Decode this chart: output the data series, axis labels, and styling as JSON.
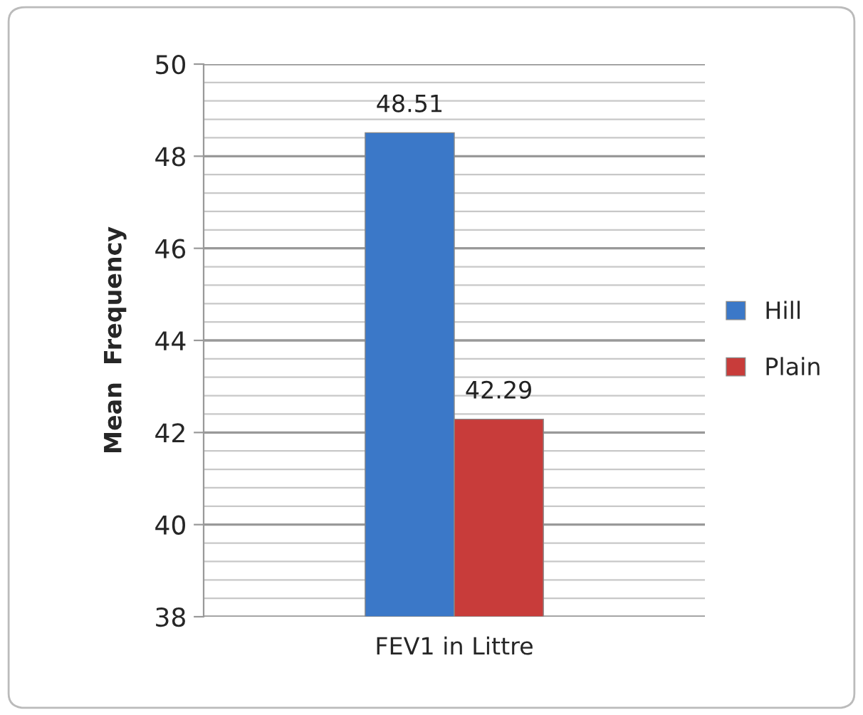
{
  "chart_data": {
    "type": "bar",
    "ylabel": "Mean  Frequency",
    "categories": [
      "FEV1 in Littre"
    ],
    "series": [
      {
        "name": "Hill",
        "color": "#3b78c8",
        "values": [
          48.51
        ]
      },
      {
        "name": "Plain",
        "color": "#c83c3a",
        "values": [
          42.29
        ]
      }
    ],
    "ylim": [
      38,
      50
    ],
    "yticks": [
      38,
      40,
      42,
      44,
      46,
      48,
      50
    ],
    "grid": "y",
    "legend": "right",
    "data_labels": true
  }
}
